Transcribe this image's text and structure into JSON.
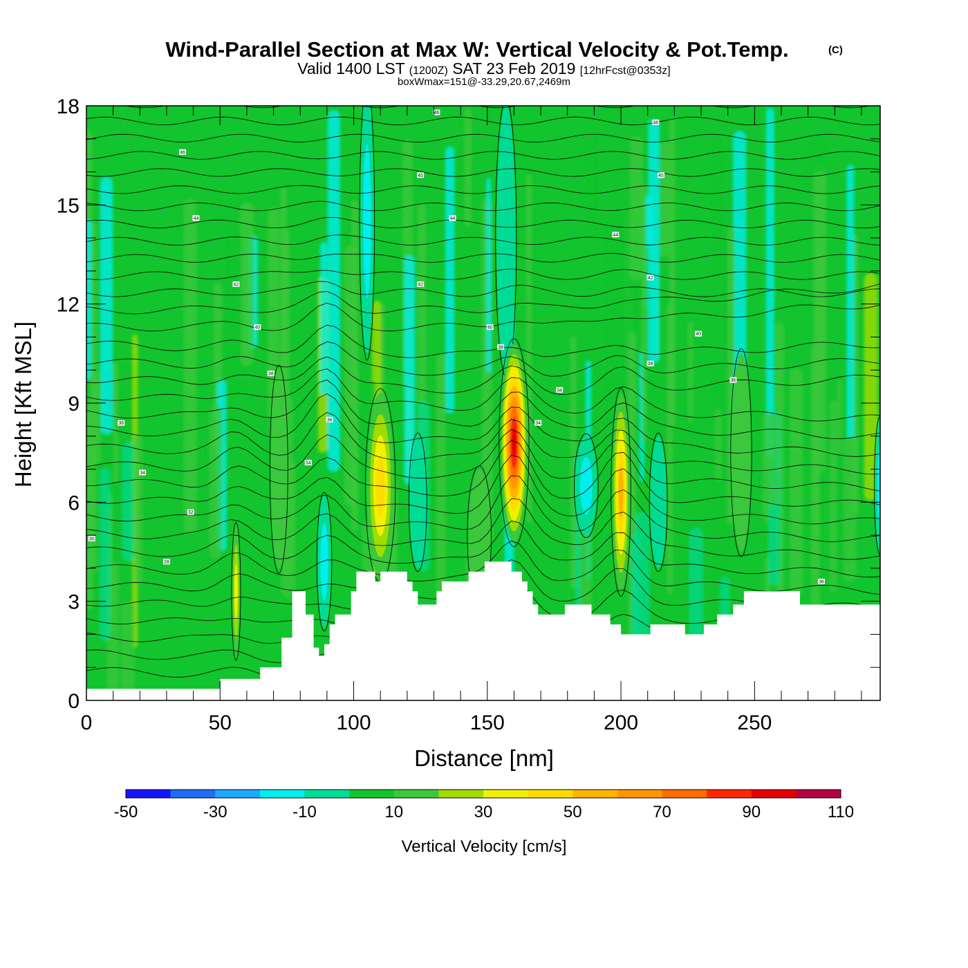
{
  "chart_data": {
    "type": "heatmap",
    "title": "Wind-Parallel Section at Max W: Vertical Velocity & Pot.Temp.",
    "title_mark": "(C)",
    "subtitle_parts": [
      "Valid 1400 LST",
      "(1200Z)",
      "SAT 23 Feb 2019",
      "[12hrFcst@0353z]"
    ],
    "annotation": "boxWmax=151@-33.29,20.67,2469m",
    "xlabel": "Distance [nm]",
    "ylabel": "Height [Kft MSL]",
    "xlim": [
      0,
      297
    ],
    "ylim": [
      0,
      18
    ],
    "x_ticks": [
      0,
      50,
      100,
      150,
      200,
      250
    ],
    "y_ticks": [
      0,
      3,
      6,
      9,
      12,
      15,
      18
    ],
    "colorbar": {
      "label": "Vertical Velocity [cm/s]",
      "bounds": [
        -50,
        -40,
        -30,
        -20,
        -10,
        0,
        10,
        20,
        30,
        40,
        50,
        60,
        70,
        80,
        90,
        100,
        110
      ],
      "tick_labels": [
        -50,
        -30,
        -10,
        10,
        30,
        50,
        70,
        90,
        110
      ],
      "colors": [
        "#1414ff",
        "#1f6ef0",
        "#1ea8ff",
        "#00eeee",
        "#00dc96",
        "#12c42d",
        "#3cc83c",
        "#a0dc00",
        "#f0f000",
        "#ffdc00",
        "#ffb400",
        "#ff9600",
        "#ff6e00",
        "#ff2800",
        "#e60000",
        "#b40046"
      ]
    },
    "background_w": 5,
    "updraft_cells": [
      {
        "x": 56,
        "z": 3.3,
        "rx": 1.5,
        "rz": 2.0,
        "w": 38
      },
      {
        "x": 110,
        "z": 6.5,
        "rx": 5.0,
        "rz": 2.8,
        "w": 48
      },
      {
        "x": 160,
        "z": 7.8,
        "rx": 5.0,
        "rz": 3.0,
        "w": 95
      },
      {
        "x": 200,
        "z": 6.3,
        "rx": 3.3,
        "rz": 3.0,
        "w": 55
      },
      {
        "x": 147,
        "z": 5.0,
        "rx": 4.0,
        "rz": 2.0,
        "w": 12
      },
      {
        "x": 72,
        "z": 7.0,
        "rx": 3.0,
        "rz": 3.0,
        "w": 14
      },
      {
        "x": 245,
        "z": 7.5,
        "rx": 3.5,
        "rz": 3.0,
        "w": 14
      }
    ],
    "downdraft_cells": [
      {
        "x": 89,
        "z": 4.2,
        "rx": 2.5,
        "rz": 2.0,
        "w": -22
      },
      {
        "x": 105,
        "z": 14.5,
        "rx": 2.5,
        "rz": 4.0,
        "w": -15
      },
      {
        "x": 157,
        "z": 14.0,
        "rx": 3.5,
        "rz": 4.0,
        "w": -12
      },
      {
        "x": 187,
        "z": 6.5,
        "rx": 4.0,
        "rz": 1.5,
        "w": -18
      },
      {
        "x": 297,
        "z": 6.5,
        "rx": 2.0,
        "rz": 2.0,
        "w": -20
      },
      {
        "x": 124,
        "z": 6.0,
        "rx": 3.0,
        "rz": 2.0,
        "w": -5
      },
      {
        "x": 214,
        "z": 6.0,
        "rx": 3.0,
        "rz": 2.0,
        "w": -5
      }
    ],
    "terrain_kft": [
      [
        0,
        0.35
      ],
      [
        50,
        0.35
      ],
      [
        50,
        0.65
      ],
      [
        65,
        0.65
      ],
      [
        65,
        1.0
      ],
      [
        73,
        1.0
      ],
      [
        73,
        1.9
      ],
      [
        77,
        1.9
      ],
      [
        77,
        3.3
      ],
      [
        82,
        3.3
      ],
      [
        82,
        2.6
      ],
      [
        85,
        2.6
      ],
      [
        85,
        1.6
      ],
      [
        87,
        1.6
      ],
      [
        87,
        1.35
      ],
      [
        89,
        1.35
      ],
      [
        89,
        1.7
      ],
      [
        91,
        1.7
      ],
      [
        91,
        2.3
      ],
      [
        93,
        2.3
      ],
      [
        93,
        2.6
      ],
      [
        99,
        2.6
      ],
      [
        99,
        3.3
      ],
      [
        101,
        3.3
      ],
      [
        101,
        3.9
      ],
      [
        108,
        3.9
      ],
      [
        108,
        3.6
      ],
      [
        110,
        3.6
      ],
      [
        110,
        3.9
      ],
      [
        120,
        3.9
      ],
      [
        120,
        3.6
      ],
      [
        122,
        3.6
      ],
      [
        122,
        3.3
      ],
      [
        124,
        3.3
      ],
      [
        124,
        2.9
      ],
      [
        131,
        2.9
      ],
      [
        131,
        3.3
      ],
      [
        133,
        3.3
      ],
      [
        133,
        3.6
      ],
      [
        143,
        3.6
      ],
      [
        143,
        3.9
      ],
      [
        149,
        3.9
      ],
      [
        149,
        4.2
      ],
      [
        159,
        4.2
      ],
      [
        159,
        3.9
      ],
      [
        163,
        3.9
      ],
      [
        163,
        3.6
      ],
      [
        165,
        3.6
      ],
      [
        165,
        3.3
      ],
      [
        167,
        3.3
      ],
      [
        167,
        2.9
      ],
      [
        169,
        2.9
      ],
      [
        169,
        2.6
      ],
      [
        179,
        2.6
      ],
      [
        179,
        2.9
      ],
      [
        189,
        2.9
      ],
      [
        189,
        2.6
      ],
      [
        196,
        2.6
      ],
      [
        196,
        2.3
      ],
      [
        200,
        2.3
      ],
      [
        200,
        2.0
      ],
      [
        211,
        2.0
      ],
      [
        211,
        2.3
      ],
      [
        224,
        2.3
      ],
      [
        224,
        2.0
      ],
      [
        231,
        2.0
      ],
      [
        231,
        2.3
      ],
      [
        236,
        2.3
      ],
      [
        236,
        2.6
      ],
      [
        242,
        2.6
      ],
      [
        242,
        2.9
      ],
      [
        246,
        2.9
      ],
      [
        246,
        3.3
      ],
      [
        267,
        3.3
      ],
      [
        267,
        2.9
      ],
      [
        297,
        2.9
      ]
    ],
    "theta_labels": [
      {
        "x": 131,
        "z": 17.8,
        "text": "46"
      },
      {
        "x": 213,
        "z": 17.5,
        "text": "46"
      },
      {
        "x": 36,
        "z": 16.6,
        "text": "46"
      },
      {
        "x": 125,
        "z": 15.9,
        "text": "45"
      },
      {
        "x": 215,
        "z": 15.9,
        "text": "45"
      },
      {
        "x": 41,
        "z": 14.6,
        "text": "44"
      },
      {
        "x": 137,
        "z": 14.6,
        "text": "44"
      },
      {
        "x": 198,
        "z": 14.1,
        "text": "44"
      },
      {
        "x": 56,
        "z": 12.6,
        "text": "42"
      },
      {
        "x": 125,
        "z": 12.6,
        "text": "42"
      },
      {
        "x": 211,
        "z": 12.8,
        "text": "42"
      },
      {
        "x": 64,
        "z": 11.3,
        "text": "40"
      },
      {
        "x": 151,
        "z": 11.3,
        "text": "40"
      },
      {
        "x": 229,
        "z": 11.1,
        "text": "40"
      },
      {
        "x": 69,
        "z": 9.9,
        "text": "38"
      },
      {
        "x": 155,
        "z": 10.7,
        "text": "38"
      },
      {
        "x": 211,
        "z": 10.2,
        "text": "38"
      },
      {
        "x": 242,
        "z": 9.7,
        "text": "36"
      },
      {
        "x": 177,
        "z": 9.4,
        "text": "34"
      },
      {
        "x": 13,
        "z": 8.4,
        "text": "36"
      },
      {
        "x": 91,
        "z": 8.5,
        "text": "36"
      },
      {
        "x": 169,
        "z": 8.4,
        "text": "34"
      },
      {
        "x": 83,
        "z": 7.2,
        "text": "34"
      },
      {
        "x": 21,
        "z": 6.9,
        "text": "34"
      },
      {
        "x": 39,
        "z": 5.7,
        "text": "32"
      },
      {
        "x": 2,
        "z": 4.9,
        "text": "30"
      },
      {
        "x": 30,
        "z": 4.2,
        "text": "28"
      },
      {
        "x": 275,
        "z": 3.6,
        "text": "36"
      }
    ]
  }
}
